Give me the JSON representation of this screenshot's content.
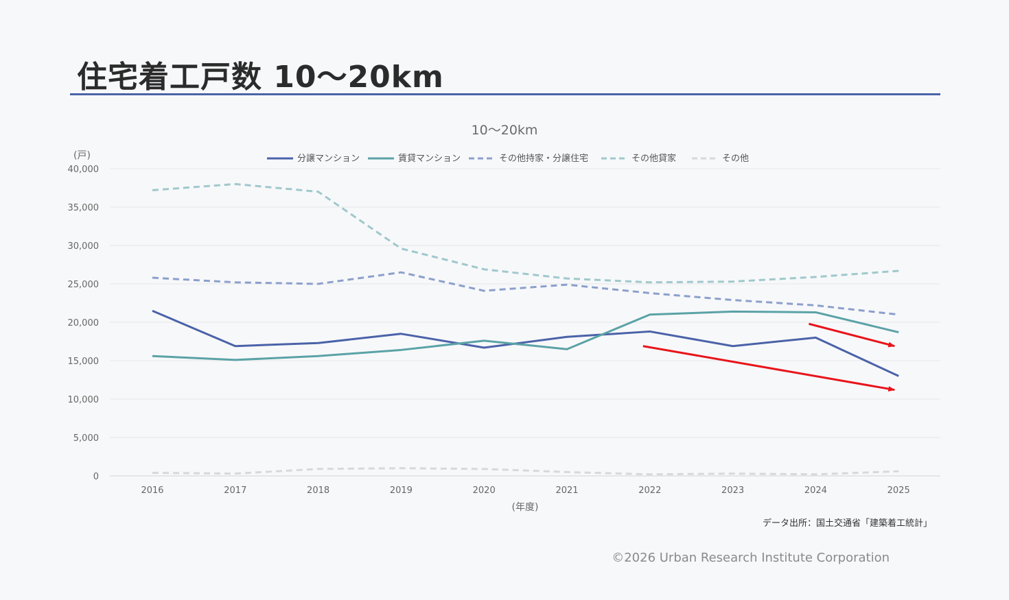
{
  "page": {
    "title": "住宅着工戸数 10～20km",
    "source": "データ出所：国土交通省「建築着工統計」",
    "copyright": "©2026 Urban Research Institute Corporation"
  },
  "chart_data": {
    "type": "line",
    "title": "10～20km",
    "ylabel": "(戸)",
    "xlabel": "(年度)",
    "ylim": [
      0,
      40000
    ],
    "yticks": [
      0,
      5000,
      10000,
      15000,
      20000,
      25000,
      30000,
      35000,
      40000
    ],
    "ytick_labels": [
      "0",
      "5,000",
      "10,000",
      "15,000",
      "20,000",
      "25,000",
      "30,000",
      "35,000",
      "40,000"
    ],
    "categories": [
      "2016",
      "2017",
      "2018",
      "2019",
      "2020",
      "2021",
      "2022",
      "2023",
      "2024",
      "2025"
    ],
    "legend_position": "top",
    "grid": true,
    "series": [
      {
        "name": "分譲マンション",
        "color": "#4a62a8",
        "dashed": false,
        "values": [
          21500,
          16900,
          17300,
          18500,
          16700,
          18100,
          18800,
          16900,
          18000,
          13000
        ]
      },
      {
        "name": "賃貸マンション",
        "color": "#5aa2a6",
        "dashed": false,
        "values": [
          15600,
          15100,
          15600,
          16400,
          17600,
          16500,
          21000,
          21400,
          21300,
          18700
        ]
      },
      {
        "name": "その他持家・分譲住宅",
        "color": "#8c9fcc",
        "dashed": true,
        "values": [
          25800,
          25200,
          25000,
          26500,
          24100,
          24900,
          23800,
          22900,
          22200,
          21000
        ]
      },
      {
        "name": "その他貸家",
        "color": "#9fc8cc",
        "dashed": true,
        "values": [
          37200,
          38000,
          37000,
          29600,
          26900,
          25700,
          25200,
          25300,
          25900,
          26700
        ]
      },
      {
        "name": "その他",
        "color": "#d8d8d8",
        "dashed": true,
        "values": [
          400,
          300,
          900,
          1000,
          900,
          500,
          200,
          300,
          200,
          600
        ]
      }
    ],
    "annotations": [
      {
        "type": "arrow",
        "color": "#e8141b",
        "from": [
          "2024",
          19800
        ],
        "to": [
          "2025",
          16900
        ]
      },
      {
        "type": "arrow",
        "color": "#e8141b",
        "from": [
          "2022",
          16900
        ],
        "to": [
          "2025",
          11200
        ]
      }
    ]
  }
}
